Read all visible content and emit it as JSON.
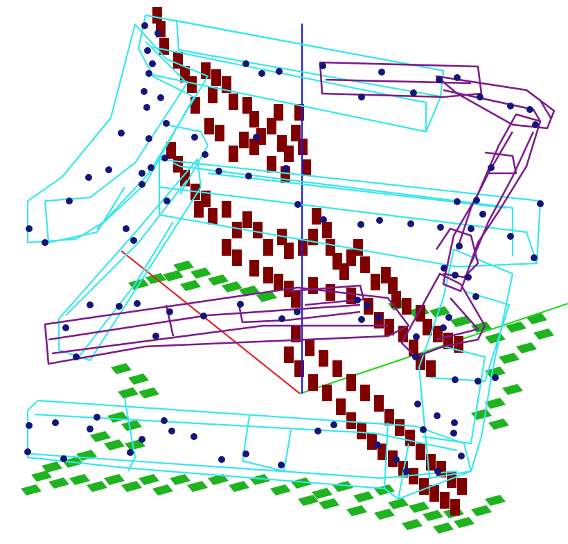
{
  "viewer": {
    "background": "#ffffff"
  },
  "colors": {
    "voxel_red": "#800000",
    "voxel_green": "#1fb31f",
    "wire_cyan": "#33e8ee",
    "wire_purple": "#7d1a8c",
    "control_point": "#14147a",
    "axis_x": "#e62020",
    "axis_y": "#22d622",
    "axis_z": "#1a1ae6"
  },
  "icons": [
    "x-axis",
    "y-axis",
    "z-axis",
    "voxel-grid",
    "wireframe-box",
    "control-point"
  ]
}
